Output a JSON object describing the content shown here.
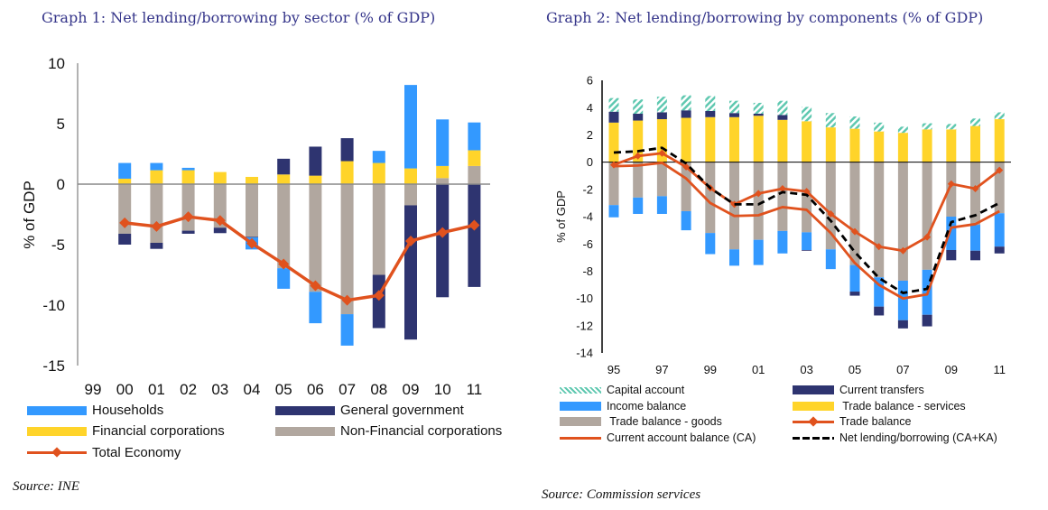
{
  "chart_data": [
    {
      "type": "bar",
      "stacked": true,
      "title": "Graph 1: Net lending/borrowing by sector (% of GDP)",
      "ylabel": "% of GDP",
      "xlabel": "",
      "ylim": [
        -15,
        10
      ],
      "yticks": [
        10,
        5,
        0,
        -5,
        -10,
        -15
      ],
      "grid": false,
      "legend_position": "bottom",
      "categories": [
        "99",
        "00",
        "01",
        "02",
        "03",
        "04",
        "05",
        "06",
        "07",
        "08",
        "09",
        "10",
        "11"
      ],
      "series": [
        {
          "name": "Non-Financial corporations",
          "kind": "bar",
          "color": "#b1a79f",
          "values": [
            null,
            -4.1,
            -4.85,
            -3.85,
            -3.6,
            -4.35,
            -6.95,
            -8.9,
            -10.75,
            -7.5,
            -1.75,
            0.5,
            1.5
          ]
        },
        {
          "name": "Financial corporations",
          "kind": "bar",
          "color": "#ffd42a",
          "values": [
            null,
            0.45,
            1.15,
            1.15,
            1.0,
            0.6,
            0.8,
            0.7,
            1.9,
            1.75,
            1.3,
            1.0,
            1.3
          ]
        },
        {
          "name": "General government",
          "kind": "bar",
          "color": "#2e3470",
          "values": [
            null,
            -0.9,
            -0.5,
            -0.25,
            -0.45,
            -0.05,
            1.3,
            2.4,
            1.9,
            -4.4,
            -11.1,
            -9.35,
            -8.5
          ]
        },
        {
          "name": "Households",
          "kind": "bar",
          "color": "#3399ff",
          "values": [
            null,
            1.3,
            0.6,
            0.2,
            0,
            -1.0,
            -1.7,
            -2.6,
            -2.6,
            1.0,
            6.9,
            3.85,
            2.3
          ]
        },
        {
          "name": "Total Economy",
          "kind": "line-marker",
          "color": "#e0521e",
          "values": [
            null,
            -3.2,
            -3.5,
            -2.7,
            -3.0,
            -4.9,
            -6.6,
            -8.4,
            -9.6,
            -9.2,
            -4.7,
            -4.0,
            -3.4
          ]
        }
      ],
      "legend": [
        {
          "name": "Households",
          "kind": "bar",
          "color": "#3399ff"
        },
        {
          "name": "General government",
          "kind": "bar",
          "color": "#2e3470"
        },
        {
          "name": "Financial corporations",
          "kind": "bar",
          "color": "#ffd42a"
        },
        {
          "name": "Non-Financial corporations",
          "kind": "bar",
          "color": "#b1a79f"
        },
        {
          "name": "Total Economy",
          "kind": "line-marker",
          "color": "#e0521e"
        }
      ],
      "source": "Source: INE"
    },
    {
      "type": "bar",
      "stacked": true,
      "title": "Graph 2: Net lending/borrowing by components (% of GDP)",
      "ylabel": "% of GDP",
      "xlabel": "",
      "ylim": [
        -14,
        6
      ],
      "yticks": [
        6,
        4,
        2,
        0,
        -2,
        -4,
        -6,
        -8,
        -10,
        -12,
        -14
      ],
      "grid": false,
      "legend_position": "bottom",
      "categories": [
        "95",
        "96",
        "97",
        "98",
        "99",
        "00",
        "01",
        "02",
        "03",
        "04",
        "05",
        "06",
        "07",
        "08",
        "09",
        "10",
        "11"
      ],
      "tick_labels": [
        "95",
        "",
        "97",
        "",
        "99",
        "",
        "01",
        "",
        "03",
        "",
        "05",
        "",
        "07",
        "",
        "09",
        "",
        "11"
      ],
      "series": [
        {
          "name": "Trade balance - services",
          "kind": "bar",
          "color": "#ffd42a",
          "values": [
            2.9,
            3.05,
            3.15,
            3.25,
            3.3,
            3.3,
            3.4,
            3.1,
            3.0,
            2.55,
            2.45,
            2.25,
            2.15,
            2.4,
            2.4,
            2.65,
            3.15
          ]
        },
        {
          "name": "Trade balance - goods",
          "kind": "bar",
          "color": "#b1a79f",
          "values": [
            -3.15,
            -2.6,
            -2.5,
            -3.6,
            -5.2,
            -6.4,
            -5.7,
            -5.05,
            -5.15,
            -6.4,
            -7.55,
            -8.45,
            -8.7,
            -7.9,
            -4.0,
            -4.6,
            -3.75
          ]
        },
        {
          "name": "Income balance",
          "kind": "bar",
          "color": "#3399ff",
          "values": [
            -0.9,
            -1.2,
            -1.3,
            -1.4,
            -1.55,
            -1.2,
            -1.85,
            -1.65,
            -1.3,
            -1.45,
            -1.95,
            -2.15,
            -2.9,
            -3.3,
            -2.45,
            -1.9,
            -2.45
          ]
        },
        {
          "name": "Current transfers",
          "kind": "bar",
          "color": "#2e3470",
          "values": [
            0.8,
            0.5,
            0.5,
            0.55,
            0.45,
            0.3,
            0.15,
            0.35,
            -0.05,
            0,
            -0.3,
            -0.65,
            -0.6,
            -0.85,
            -0.75,
            -0.7,
            -0.5
          ]
        },
        {
          "name": "Capital account",
          "kind": "bar-hatched",
          "color": "#5fc8b0",
          "values": [
            1.0,
            1.05,
            1.15,
            1.1,
            1.1,
            0.9,
            0.8,
            1.05,
            1.05,
            1.05,
            0.9,
            0.65,
            0.45,
            0.45,
            0.4,
            0.55,
            0.5
          ]
        },
        {
          "name": "Trade balance",
          "kind": "line-marker",
          "color": "#e0521e",
          "values": [
            -0.2,
            0.45,
            0.65,
            -0.35,
            -1.9,
            -3.1,
            -2.3,
            -1.95,
            -2.15,
            -3.8,
            -5.1,
            -6.2,
            -6.5,
            -5.5,
            -1.6,
            -1.95,
            -0.6
          ]
        },
        {
          "name": "Current account balance (CA)",
          "kind": "line",
          "color": "#e0521e",
          "values": [
            -0.3,
            -0.25,
            -0.05,
            -1.2,
            -3.0,
            -3.95,
            -3.9,
            -3.3,
            -3.5,
            -5.2,
            -7.4,
            -9.0,
            -10.0,
            -9.7,
            -4.8,
            -4.55,
            -3.6
          ]
        },
        {
          "name": "Net lending/borrowing (CA+KA)",
          "kind": "line-dashed",
          "color": "#000000",
          "values": [
            0.7,
            0.8,
            1.05,
            -0.1,
            -1.9,
            -3.1,
            -3.1,
            -2.2,
            -2.4,
            -4.3,
            -6.6,
            -8.5,
            -9.6,
            -9.3,
            -4.4,
            -3.9,
            -3.0
          ]
        }
      ],
      "legend": [
        {
          "name": "Capital account",
          "kind": "bar-hatched",
          "color": "#5fc8b0"
        },
        {
          "name": "Current transfers",
          "kind": "bar",
          "color": "#2e3470"
        },
        {
          "name": "Income balance",
          "kind": "bar",
          "color": "#3399ff"
        },
        {
          "name": " Trade balance - services",
          "kind": "bar",
          "color": "#ffd42a"
        },
        {
          "name": " Trade balance - goods",
          "kind": "bar",
          "color": "#b1a79f"
        },
        {
          "name": "Trade balance",
          "kind": "line-marker",
          "color": "#e0521e"
        },
        {
          "name": "Current account balance (CA)",
          "kind": "line",
          "color": "#e0521e"
        },
        {
          "name": "Net lending/borrowing (CA+KA)",
          "kind": "line-dashed",
          "color": "#000000"
        }
      ],
      "source": "Source: Commission services"
    }
  ]
}
